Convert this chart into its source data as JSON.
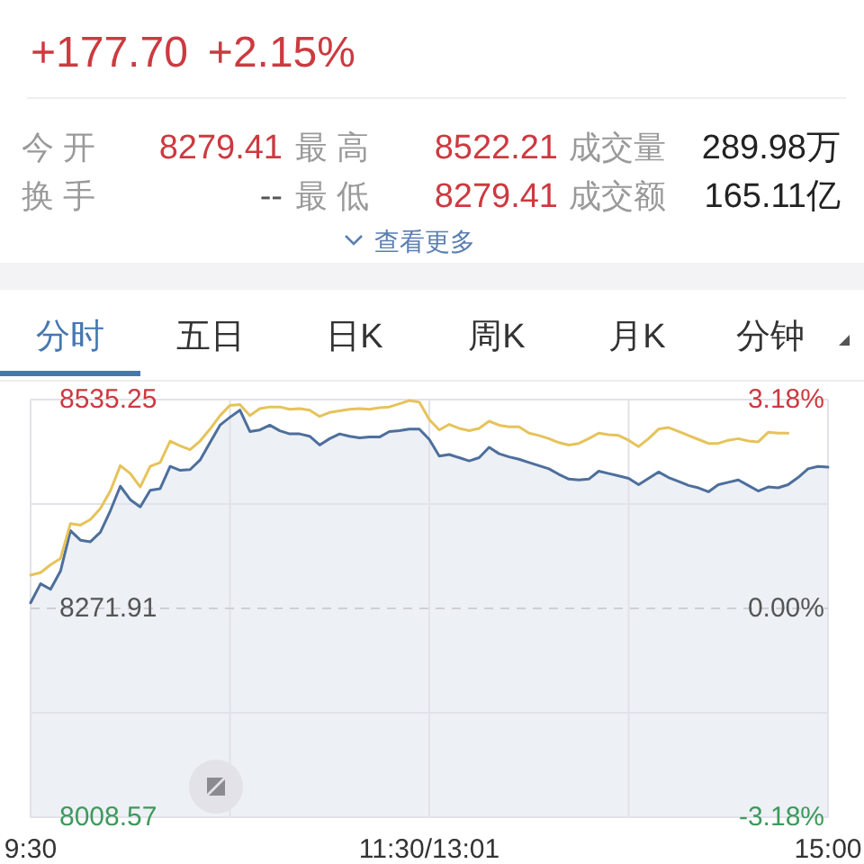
{
  "chart_data": {
    "type": "line",
    "annotations": [
      "+177.70",
      "+2.15%",
      "今 开",
      "8279.41",
      "最 高",
      "8522.21",
      "成交量",
      "289.98万",
      "换 手",
      "--",
      "最 低",
      "8279.41",
      "成交额",
      "165.11亿",
      "查看更多",
      "分时",
      "五日",
      "日K",
      "周K",
      "月K",
      "分钟"
    ],
    "categories": [
      "9:30",
      null,
      null,
      null,
      null,
      null,
      null,
      null,
      null,
      null,
      null,
      null,
      null,
      null,
      null,
      null,
      null,
      null,
      null,
      null,
      null,
      null,
      null,
      null,
      null,
      null,
      null,
      null,
      null,
      null,
      null,
      null,
      null,
      null,
      null,
      null,
      null,
      null,
      null,
      null,
      "11:30/13:01",
      null,
      null,
      null,
      null,
      null,
      null,
      null,
      null,
      null,
      null,
      null,
      null,
      null,
      null,
      null,
      null,
      null,
      null,
      null,
      null,
      null,
      null,
      null,
      null,
      null,
      null,
      null,
      null,
      null,
      null,
      null,
      null,
      null,
      null,
      null,
      null,
      null,
      null,
      null,
      "15:00"
    ],
    "ylim": [
      8008.57,
      8535.25
    ],
    "yticks": [
      8008.57,
      {
        "value": 8140.24,
        "label": null
      },
      8271.91,
      {
        "value": 8403.58,
        "label": null
      },
      8535.25
    ],
    "y2lim": [
      -3.18,
      3.18
    ],
    "y2ticks": [
      {
        "value": -3.18,
        "label": "-3.18%"
      },
      {
        "value": 0,
        "label": "0.00%"
      },
      {
        "value": 3.18,
        "label": "3.18%"
      }
    ],
    "grid": true,
    "ref_lines": [
      {
        "axis": "y",
        "value": 8271.91,
        "color": "#cfcfd6",
        "line_style": "dashed"
      }
    ],
    "series": [
      {
        "color": "#4d6f9c",
        "values": [
          8279,
          8303,
          8296,
          8319,
          8370,
          8358,
          8356,
          8368,
          8395,
          8426,
          8409,
          8400,
          8421,
          8423,
          8451,
          8446,
          8447,
          8459,
          8481,
          8503,
          8513,
          8522,
          8495,
          8497,
          8503,
          8496,
          8492,
          8492,
          8489,
          8478,
          8486,
          8492,
          8489,
          8487,
          8488,
          8488,
          8495,
          8496,
          8498,
          8498,
          8485,
          8464,
          8466,
          8462,
          8458,
          8462,
          8475,
          8467,
          8463,
          8460,
          8456,
          8452,
          8448,
          8441,
          8435,
          8434,
          8435,
          8445,
          8442,
          8439,
          8436,
          8428,
          8436,
          8444,
          8437,
          8432,
          8427,
          8424,
          8419,
          8428,
          8431,
          8434,
          8427,
          8420,
          8425,
          8424,
          8428,
          8437,
          8448,
          8451,
          8450
        ]
      },
      {
        "color": "#e6c35a",
        "values": [
          8314,
          8317,
          8327,
          8335,
          8379,
          8377,
          8384,
          8398,
          8420,
          8452,
          8442,
          8425,
          8451,
          8456,
          8483,
          8477,
          8472,
          8483,
          8498,
          8515,
          8528,
          8529,
          8515,
          8524,
          8526,
          8526,
          8523,
          8524,
          8522,
          8514,
          8519,
          8521,
          8523,
          8524,
          8523,
          8525,
          8526,
          8530,
          8534,
          8532,
          8510,
          8497,
          8504,
          8499,
          8496,
          8499,
          8508,
          8503,
          8501,
          8501,
          8493,
          8490,
          8486,
          8481,
          8478,
          8480,
          8486,
          8493,
          8491,
          8490,
          8484,
          8476,
          8486,
          8498,
          8500,
          8495,
          8490,
          8485,
          8480,
          8480,
          8484,
          8486,
          8483,
          8482,
          8494,
          8493,
          8493,
          null,
          null,
          null,
          null
        ]
      }
    ]
  }
}
